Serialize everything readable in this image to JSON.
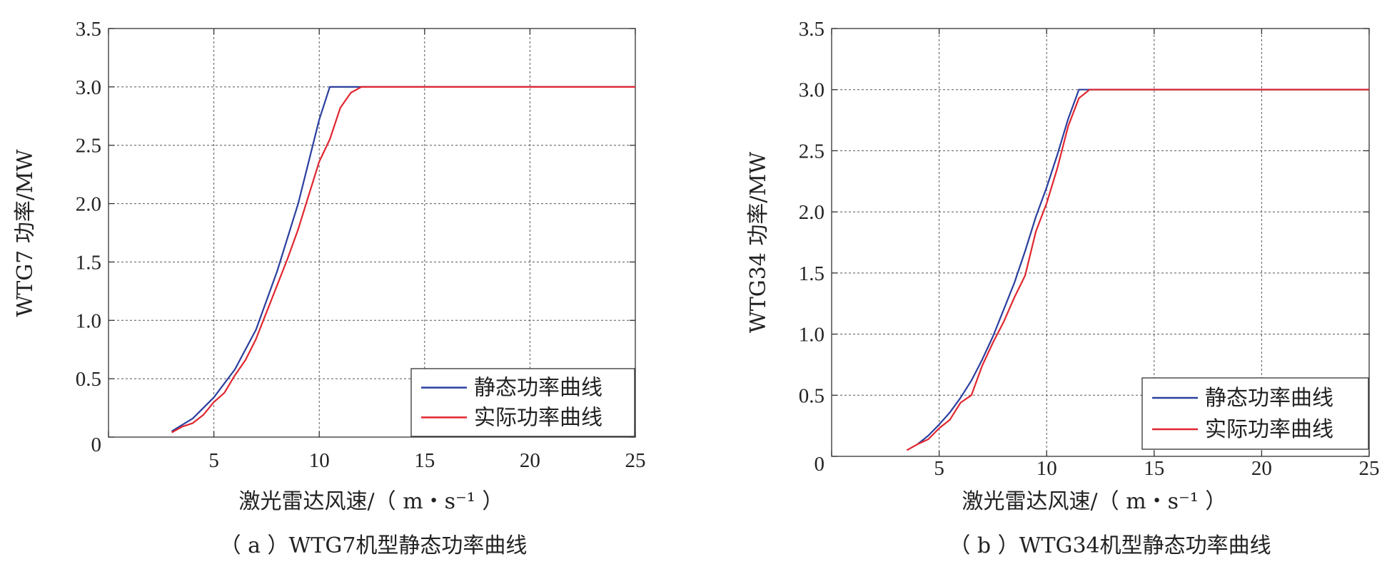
{
  "chart_data": [
    {
      "type": "line",
      "caption": "（ a ）WTG7机型静态功率曲线",
      "xlabel": "激光雷达风速/（ m・s⁻¹ ）",
      "ylabel": "WTG7 功率/MW",
      "xlim": [
        0,
        25
      ],
      "ylim": [
        0,
        3.5
      ],
      "x_ticks": [
        "0",
        "5",
        "10",
        "15",
        "20",
        "25"
      ],
      "y_ticks": [
        "0",
        "0.5",
        "1.0",
        "1.5",
        "2.0",
        "2.5",
        "3.0",
        "3.5"
      ],
      "grid": true,
      "legend_position": "bottom-right",
      "series": [
        {
          "name": "静态功率曲线",
          "color": "#2b3f9e",
          "points": [
            [
              3,
              0.05
            ],
            [
              4,
              0.16
            ],
            [
              5,
              0.34
            ],
            [
              6,
              0.58
            ],
            [
              7,
              0.92
            ],
            [
              8,
              1.42
            ],
            [
              9,
              2.0
            ],
            [
              10,
              2.72
            ],
            [
              10.5,
              3.0
            ],
            [
              25,
              3.0
            ]
          ]
        },
        {
          "name": "实际功率曲线",
          "color": "#e0262f",
          "points": [
            [
              3,
              0.04
            ],
            [
              3.5,
              0.09
            ],
            [
              4,
              0.12
            ],
            [
              4.5,
              0.19
            ],
            [
              5,
              0.3
            ],
            [
              5.5,
              0.38
            ],
            [
              6,
              0.53
            ],
            [
              6.5,
              0.66
            ],
            [
              7,
              0.84
            ],
            [
              7.5,
              1.07
            ],
            [
              8,
              1.3
            ],
            [
              8.5,
              1.53
            ],
            [
              9,
              1.78
            ],
            [
              9.5,
              2.07
            ],
            [
              10,
              2.36
            ],
            [
              10.5,
              2.55
            ],
            [
              11,
              2.82
            ],
            [
              11.5,
              2.95
            ],
            [
              12,
              3.0
            ],
            [
              25,
              3.0
            ]
          ]
        }
      ]
    },
    {
      "type": "line",
      "caption": "（ b ）WTG34机型静态功率曲线",
      "xlabel": "激光雷达风速/（ m・s⁻¹ ）",
      "ylabel": "WTG34 功率/MW",
      "xlim": [
        0,
        25
      ],
      "ylim": [
        0,
        3.5
      ],
      "x_ticks": [
        "0",
        "5",
        "10",
        "15",
        "20",
        "25"
      ],
      "y_ticks": [
        "0",
        "0.5",
        "1.0",
        "1.5",
        "2.0",
        "2.5",
        "3.0",
        "3.5"
      ],
      "grid": true,
      "legend_position": "bottom-right",
      "series": [
        {
          "name": "静态功率曲线",
          "color": "#2b3f9e",
          "points": [
            [
              4,
              0.1
            ],
            [
              4.5,
              0.17
            ],
            [
              5,
              0.26
            ],
            [
              5.5,
              0.36
            ],
            [
              6,
              0.48
            ],
            [
              6.5,
              0.62
            ],
            [
              7,
              0.79
            ],
            [
              7.5,
              0.98
            ],
            [
              8,
              1.2
            ],
            [
              8.5,
              1.42
            ],
            [
              9,
              1.68
            ],
            [
              9.5,
              1.96
            ],
            [
              10,
              2.2
            ],
            [
              10.5,
              2.47
            ],
            [
              11,
              2.76
            ],
            [
              11.5,
              3.0
            ],
            [
              25,
              3.0
            ]
          ]
        },
        {
          "name": "实际功率曲线",
          "color": "#e0262f",
          "points": [
            [
              3.5,
              0.05
            ],
            [
              4,
              0.1
            ],
            [
              4.5,
              0.14
            ],
            [
              5,
              0.23
            ],
            [
              5.5,
              0.3
            ],
            [
              6,
              0.44
            ],
            [
              6.5,
              0.5
            ],
            [
              7,
              0.74
            ],
            [
              7.5,
              0.93
            ],
            [
              8,
              1.1
            ],
            [
              8.5,
              1.3
            ],
            [
              9,
              1.48
            ],
            [
              9.5,
              1.84
            ],
            [
              10,
              2.07
            ],
            [
              10.5,
              2.36
            ],
            [
              11,
              2.7
            ],
            [
              11.5,
              2.93
            ],
            [
              12,
              3.0
            ],
            [
              25,
              3.0
            ]
          ]
        }
      ]
    }
  ]
}
